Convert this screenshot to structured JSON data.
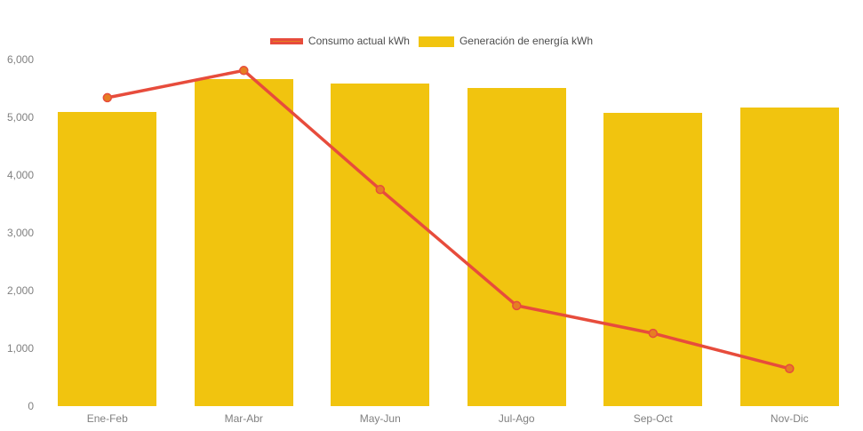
{
  "legend": {
    "items": [
      {
        "label": "Consumo actual kWh",
        "swatch": "line"
      },
      {
        "label": "Generación de energía kWh",
        "swatch": "bar"
      }
    ]
  },
  "colors": {
    "bar_fill": "#f1c40f",
    "line_stroke": "#e74c3c",
    "marker_fill": "#e67e22",
    "axis_text": "#808080",
    "legend_text": "#4d4d4d",
    "background": "#ffffff"
  },
  "chart_data": {
    "type": "bar+line combo",
    "categories": [
      "Ene-Feb",
      "Mar-Abr",
      "May-Jun",
      "Jul-Ago",
      "Sep-Oct",
      "Nov-Dic"
    ],
    "series": [
      {
        "name": "Consumo actual kWh",
        "type": "line",
        "values": [
          5340,
          5810,
          3750,
          1740,
          1260,
          650
        ],
        "color": "#e74c3c",
        "marker_color": "#e67e22"
      },
      {
        "name": "Generación de energía kWh",
        "type": "bar",
        "values": [
          5090,
          5660,
          5580,
          5510,
          5080,
          5170
        ],
        "color": "#f1c40f"
      }
    ],
    "title": "",
    "xlabel": "",
    "ylabel": "",
    "ylim": [
      0,
      6000
    ],
    "ytick_values": [
      0,
      1000,
      2000,
      3000,
      4000,
      5000,
      6000
    ],
    "ytick_labels": [
      "0",
      "1,000",
      "2,000",
      "3,000",
      "4,000",
      "5,000",
      "6,000"
    ],
    "grid": false,
    "legend_position": "top-center"
  }
}
